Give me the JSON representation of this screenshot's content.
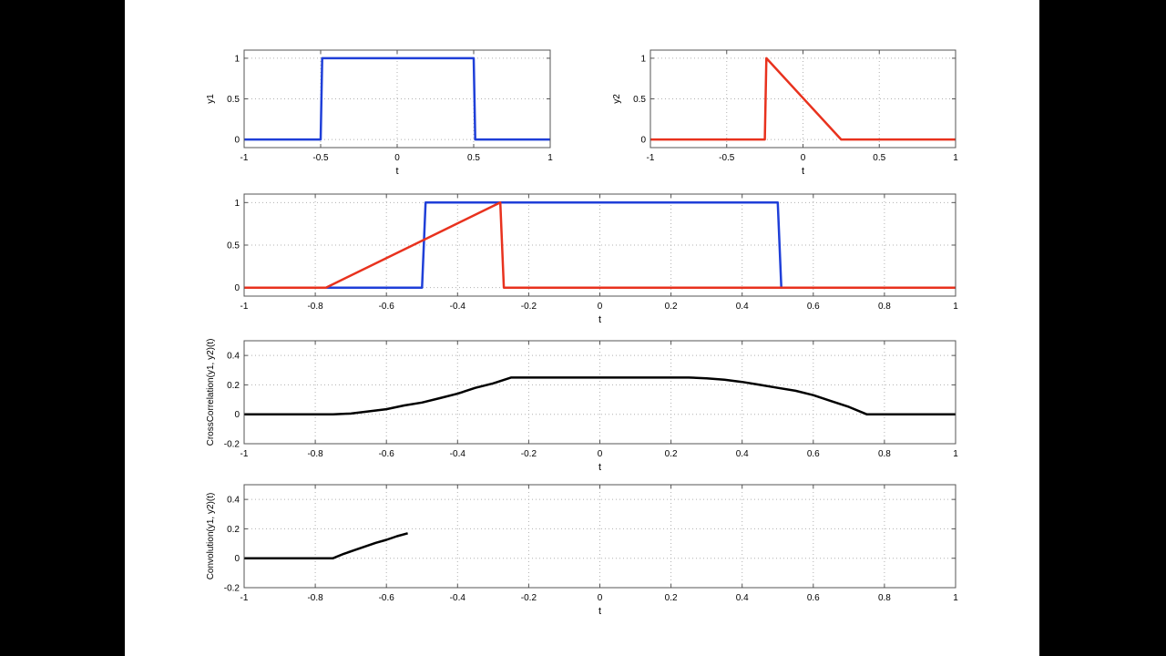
{
  "colors": {
    "blue": "#1f3fd8",
    "red": "#e8321e",
    "black": "#000000",
    "axis": "#555555",
    "grid": "#b0b0b0"
  },
  "chart_data": [
    {
      "type": "line",
      "xlabel": "t",
      "ylabel": "y1",
      "xlim": [
        -1,
        1
      ],
      "ylim": [
        -0.1,
        1.1
      ],
      "xticks": [
        "-1",
        "-0.5",
        "0",
        "0.5",
        "1"
      ],
      "yticks": [
        "0",
        "0.5",
        "1"
      ],
      "grid": true,
      "series": [
        {
          "color": "blue",
          "x": [
            -1,
            -0.5,
            -0.49,
            0.5,
            0.51,
            1
          ],
          "y": [
            0,
            0,
            1,
            1,
            0,
            0
          ]
        }
      ]
    },
    {
      "type": "line",
      "xlabel": "t",
      "ylabel": "y2",
      "xlim": [
        -1,
        1
      ],
      "ylim": [
        -0.1,
        1.1
      ],
      "xticks": [
        "-1",
        "-0.5",
        "0",
        "0.5",
        "1"
      ],
      "yticks": [
        "0",
        "0.5",
        "1"
      ],
      "grid": true,
      "series": [
        {
          "color": "red",
          "x": [
            -1,
            -0.25,
            -0.24,
            0.25,
            1
          ],
          "y": [
            0,
            0,
            1,
            0,
            0
          ]
        }
      ]
    },
    {
      "type": "line",
      "xlabel": "t",
      "ylabel": "",
      "xlim": [
        -1,
        1
      ],
      "ylim": [
        -0.1,
        1.1
      ],
      "xticks": [
        "-1",
        "-0.8",
        "-0.6",
        "-0.4",
        "-0.2",
        "0",
        "0.2",
        "0.4",
        "0.6",
        "0.8",
        "1"
      ],
      "yticks": [
        "0",
        "0.5",
        "1"
      ],
      "grid": true,
      "series": [
        {
          "color": "blue",
          "x": [
            -1,
            -0.5,
            -0.49,
            0.5,
            0.51,
            1
          ],
          "y": [
            0,
            0,
            1,
            1,
            0,
            0
          ]
        },
        {
          "color": "red",
          "x": [
            -1,
            -0.77,
            -0.28,
            -0.27,
            1
          ],
          "y": [
            0,
            0,
            1,
            0,
            0
          ]
        }
      ]
    },
    {
      "type": "line",
      "xlabel": "t",
      "ylabel": "CrossCorrelation(y1, y2)(t)",
      "xlim": [
        -1,
        1
      ],
      "ylim": [
        -0.2,
        0.5
      ],
      "xticks": [
        "-1",
        "-0.8",
        "-0.6",
        "-0.4",
        "-0.2",
        "0",
        "0.2",
        "0.4",
        "0.6",
        "0.8",
        "1"
      ],
      "yticks": [
        "-0.2",
        "0",
        "0.2",
        "0.4"
      ],
      "grid": true,
      "series": [
        {
          "color": "black",
          "x": [
            -1,
            -0.75,
            -0.7,
            -0.65,
            -0.6,
            -0.55,
            -0.5,
            -0.45,
            -0.4,
            -0.35,
            -0.3,
            -0.25,
            0,
            0.25,
            0.3,
            0.35,
            0.4,
            0.45,
            0.5,
            0.55,
            0.6,
            0.65,
            0.7,
            0.75,
            1
          ],
          "y": [
            0,
            0,
            0.005,
            0.02,
            0.035,
            0.06,
            0.08,
            0.11,
            0.14,
            0.18,
            0.21,
            0.25,
            0.25,
            0.25,
            0.245,
            0.235,
            0.22,
            0.2,
            0.18,
            0.16,
            0.13,
            0.09,
            0.05,
            0,
            0
          ]
        }
      ]
    },
    {
      "type": "line",
      "xlabel": "t",
      "ylabel": "Convolution(y1, y2)(t)",
      "xlim": [
        -1,
        1
      ],
      "ylim": [
        -0.2,
        0.5
      ],
      "xticks": [
        "-1",
        "-0.8",
        "-0.6",
        "-0.4",
        "-0.2",
        "0",
        "0.2",
        "0.4",
        "0.6",
        "0.8",
        "1"
      ],
      "yticks": [
        "-0.2",
        "0",
        "0.2",
        "0.4"
      ],
      "grid": true,
      "series": [
        {
          "color": "black",
          "x": [
            -1,
            -0.75,
            -0.72,
            -0.69,
            -0.66,
            -0.63,
            -0.6,
            -0.57,
            -0.54
          ],
          "y": [
            0,
            0,
            0.03,
            0.055,
            0.08,
            0.105,
            0.125,
            0.15,
            0.17
          ]
        }
      ]
    }
  ]
}
